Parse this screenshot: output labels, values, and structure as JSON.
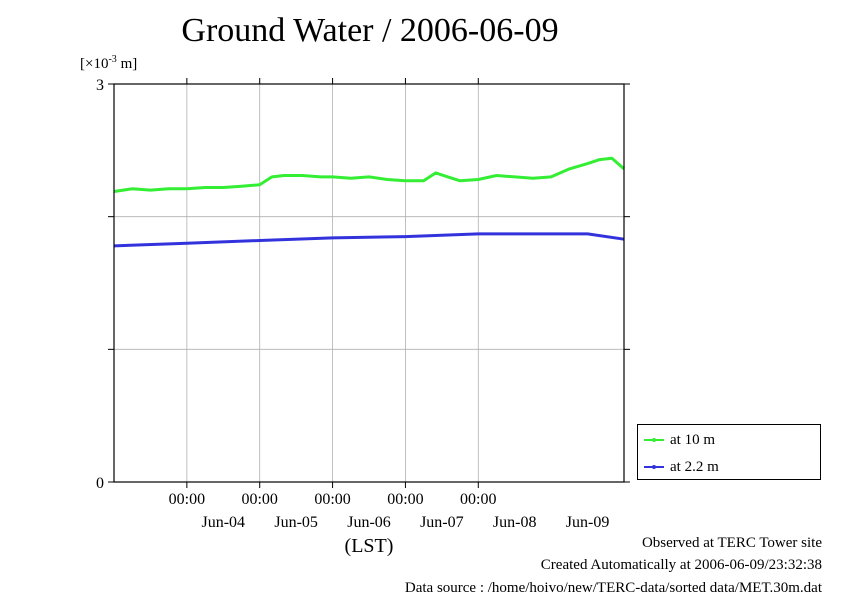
{
  "title": "Ground Water / 2006-06-09",
  "unit_label": {
    "prefix": "[×10",
    "exponent": "-3",
    "suffix": " m]"
  },
  "footer": {
    "observed": "Observed at TERC Tower site",
    "created": "Created Automatically at 2006-06-09/23:32:38",
    "source": "Data source : /home/hoivo/new/TERC-data/sorted  data/MET.30m.dat"
  },
  "colors": {
    "at_10m": "#33ee33",
    "at_2_2m": "#3333dd",
    "grid": "#b0b0b0",
    "axis": "#000000"
  },
  "chart_data": {
    "type": "line",
    "title": "Ground Water / 2006-06-09",
    "xlabel": "(LST)",
    "ylabel": "[×10-3 m]",
    "ylim": [
      0,
      3
    ],
    "y_ticks": [
      0,
      1,
      2,
      3
    ],
    "y_tick_labels": [
      "0",
      "",
      "",
      "3"
    ],
    "xlim": [
      "2006-06-03T00:00",
      "2006-06-09T24:00"
    ],
    "x_ticks": [
      "2006-06-04T00:00",
      "2006-06-05T00:00",
      "2006-06-06T00:00",
      "2006-06-07T00:00",
      "2006-06-08T00:00"
    ],
    "x_tick_time_labels": [
      "00:00",
      "00:00",
      "00:00",
      "00:00",
      "00:00"
    ],
    "x_day_labels": [
      {
        "label": "Jun-04",
        "x": "2006-06-04T00:00"
      },
      {
        "label": "Jun-05",
        "x": "2006-06-05T00:00"
      },
      {
        "label": "Jun-06",
        "x": "2006-06-06T00:00"
      },
      {
        "label": "Jun-07",
        "x": "2006-06-07T00:00"
      },
      {
        "label": "Jun-08",
        "x": "2006-06-08T00:00"
      },
      {
        "label": "Jun-09",
        "x": "2006-06-09T00:00"
      }
    ],
    "grid": true,
    "legend_position": "bottom-right outside",
    "series": [
      {
        "name": "at 10 m",
        "color": "#33ee33",
        "points": [
          [
            "2006-06-03T00:00",
            2.19
          ],
          [
            "2006-06-03T06:00",
            2.21
          ],
          [
            "2006-06-03T12:00",
            2.2
          ],
          [
            "2006-06-03T18:00",
            2.21
          ],
          [
            "2006-06-04T00:00",
            2.21
          ],
          [
            "2006-06-04T06:00",
            2.22
          ],
          [
            "2006-06-04T12:00",
            2.22
          ],
          [
            "2006-06-04T18:00",
            2.23
          ],
          [
            "2006-06-05T00:00",
            2.24
          ],
          [
            "2006-06-05T04:00",
            2.3
          ],
          [
            "2006-06-05T08:00",
            2.31
          ],
          [
            "2006-06-05T14:00",
            2.31
          ],
          [
            "2006-06-05T20:00",
            2.3
          ],
          [
            "2006-06-06T00:00",
            2.3
          ],
          [
            "2006-06-06T06:00",
            2.29
          ],
          [
            "2006-06-06T12:00",
            2.3
          ],
          [
            "2006-06-06T18:00",
            2.28
          ],
          [
            "2006-06-07T00:00",
            2.27
          ],
          [
            "2006-06-07T06:00",
            2.27
          ],
          [
            "2006-06-07T10:00",
            2.33
          ],
          [
            "2006-06-07T14:00",
            2.3
          ],
          [
            "2006-06-07T18:00",
            2.27
          ],
          [
            "2006-06-08T00:00",
            2.28
          ],
          [
            "2006-06-08T06:00",
            2.31
          ],
          [
            "2006-06-08T12:00",
            2.3
          ],
          [
            "2006-06-08T18:00",
            2.29
          ],
          [
            "2006-06-09T00:00",
            2.3
          ],
          [
            "2006-06-09T06:00",
            2.36
          ],
          [
            "2006-06-09T12:00",
            2.4
          ],
          [
            "2006-06-09T16:00",
            2.43
          ],
          [
            "2006-06-09T20:00",
            2.44
          ],
          [
            "2006-06-10T00:00",
            2.36
          ]
        ]
      },
      {
        "name": "at 2.2 m",
        "color": "#3333dd",
        "points": [
          [
            "2006-06-03T00:00",
            1.78
          ],
          [
            "2006-06-04T00:00",
            1.8
          ],
          [
            "2006-06-05T00:00",
            1.82
          ],
          [
            "2006-06-06T00:00",
            1.84
          ],
          [
            "2006-06-07T00:00",
            1.85
          ],
          [
            "2006-06-08T00:00",
            1.87
          ],
          [
            "2006-06-09T00:00",
            1.87
          ],
          [
            "2006-06-09T12:00",
            1.87
          ],
          [
            "2006-06-10T00:00",
            1.83
          ]
        ]
      }
    ]
  }
}
